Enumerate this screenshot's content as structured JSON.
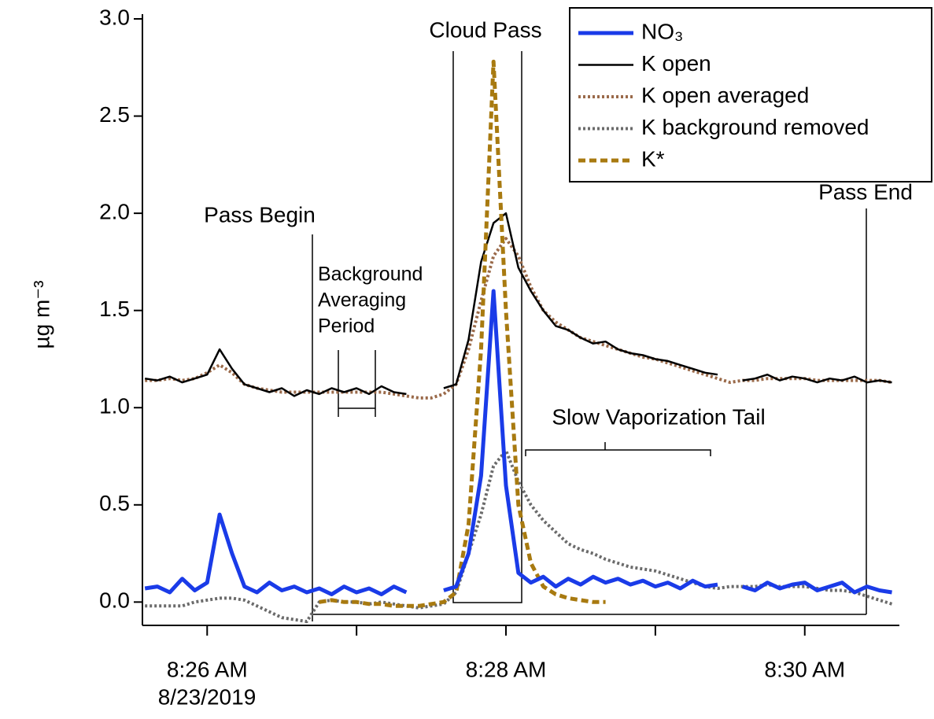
{
  "chart_data": {
    "type": "line",
    "ylabel": "µg m⁻³",
    "date_label": "8/23/2019",
    "xlim": [
      "08:25:34",
      "08:30:38"
    ],
    "ylim": [
      -0.12,
      3.0
    ],
    "xticks": [
      {
        "value": "08:26:00",
        "label": "8:26 AM"
      },
      {
        "value": "08:27:00",
        "label": null
      },
      {
        "value": "08:28:00",
        "label": "8:28 AM"
      },
      {
        "value": "08:29:00",
        "label": null
      },
      {
        "value": "08:30:00",
        "label": "8:30 AM"
      }
    ],
    "yticks": [
      {
        "value": 0,
        "label": "0.0"
      },
      {
        "value": 0.5,
        "label": "0.5"
      },
      {
        "value": 1,
        "label": "1.0"
      },
      {
        "value": 1.5,
        "label": "1.5"
      },
      {
        "value": 2,
        "label": "2.0"
      },
      {
        "value": 2.5,
        "label": "2.5"
      },
      {
        "value": 3,
        "label": "3.0"
      }
    ],
    "x": [
      "08:25:35",
      "08:25:40",
      "08:25:45",
      "08:25:50",
      "08:25:55",
      "08:26:00",
      "08:26:05",
      "08:26:10",
      "08:26:15",
      "08:26:20",
      "08:26:25",
      "08:26:30",
      "08:26:35",
      "08:26:40",
      "08:26:45",
      "08:26:50",
      "08:26:55",
      "08:27:00",
      "08:27:05",
      "08:27:10",
      "08:27:15",
      "08:27:20",
      "08:27:25",
      "08:27:30",
      "08:27:35",
      "08:27:40",
      "08:27:45",
      "08:27:50",
      "08:27:55",
      "08:28:00",
      "08:28:05",
      "08:28:10",
      "08:28:15",
      "08:28:20",
      "08:28:25",
      "08:28:30",
      "08:28:35",
      "08:28:40",
      "08:28:45",
      "08:28:50",
      "08:28:55",
      "08:29:00",
      "08:29:05",
      "08:29:10",
      "08:29:15",
      "08:29:20",
      "08:29:25",
      "08:29:30",
      "08:29:35",
      "08:29:40",
      "08:29:45",
      "08:29:50",
      "08:29:55",
      "08:30:00",
      "08:30:05",
      "08:30:10",
      "08:30:15",
      "08:30:20",
      "08:30:25",
      "08:30:30",
      "08:30:35"
    ],
    "series": [
      {
        "name": "NO₃",
        "color": "#1a3be8",
        "line_style": "solid",
        "line_width": 5,
        "values": [
          0.07,
          0.08,
          0.05,
          0.12,
          0.06,
          0.1,
          0.45,
          0.25,
          0.08,
          0.05,
          0.1,
          0.06,
          0.08,
          0.05,
          0.07,
          0.04,
          0.08,
          0.05,
          0.07,
          0.04,
          0.08,
          0.05,
          null,
          null,
          0.06,
          0.08,
          0.25,
          0.65,
          1.6,
          0.6,
          0.15,
          0.1,
          0.13,
          0.08,
          0.12,
          0.09,
          0.13,
          0.1,
          0.12,
          0.09,
          0.11,
          0.08,
          0.1,
          0.07,
          0.11,
          0.08,
          0.09,
          null,
          0.08,
          0.06,
          0.1,
          0.07,
          0.09,
          0.1,
          0.06,
          0.08,
          0.1,
          0.05,
          0.08,
          0.06,
          0.05
        ]
      },
      {
        "name": "K open",
        "color": "#000000",
        "line_style": "solid",
        "line_width": 2.5,
        "values": [
          1.15,
          1.14,
          1.16,
          1.13,
          1.15,
          1.17,
          1.3,
          1.2,
          1.12,
          1.1,
          1.08,
          1.1,
          1.06,
          1.09,
          1.07,
          1.1,
          1.08,
          1.1,
          1.07,
          1.11,
          1.08,
          1.07,
          null,
          null,
          1.1,
          1.12,
          1.35,
          1.75,
          1.95,
          2.0,
          1.72,
          1.6,
          1.5,
          1.42,
          1.4,
          1.36,
          1.33,
          1.34,
          1.3,
          1.28,
          1.27,
          1.25,
          1.24,
          1.22,
          1.2,
          1.18,
          1.17,
          null,
          1.14,
          1.15,
          1.17,
          1.14,
          1.16,
          1.15,
          1.13,
          1.15,
          1.14,
          1.16,
          1.13,
          1.14,
          1.13
        ]
      },
      {
        "name": "K open averaged",
        "color": "#9a6a4a",
        "line_style": "dotted",
        "line_width": 4,
        "values": [
          1.14,
          1.14,
          1.15,
          1.14,
          1.15,
          1.18,
          1.22,
          1.18,
          1.12,
          1.1,
          1.09,
          1.08,
          1.08,
          1.08,
          1.08,
          1.08,
          1.08,
          1.08,
          1.08,
          1.08,
          1.07,
          1.06,
          1.05,
          1.05,
          1.07,
          1.12,
          1.3,
          1.55,
          1.78,
          1.87,
          1.78,
          1.62,
          1.5,
          1.44,
          1.4,
          1.36,
          1.34,
          1.32,
          1.3,
          1.28,
          1.26,
          1.25,
          1.23,
          1.21,
          1.19,
          1.17,
          1.15,
          1.13,
          1.14,
          1.14,
          1.15,
          1.15,
          1.15,
          1.15,
          1.14,
          1.14,
          1.14,
          1.14,
          1.14,
          1.14,
          1.13
        ]
      },
      {
        "name": "K background removed",
        "color": "#6b6b6b",
        "line_style": "dotted",
        "line_width": 4,
        "values": [
          -0.02,
          -0.02,
          -0.02,
          -0.02,
          0.0,
          0.01,
          0.02,
          0.02,
          0.01,
          -0.02,
          -0.05,
          -0.08,
          -0.09,
          -0.1,
          0.0,
          0.01,
          0.0,
          0.0,
          -0.01,
          0.0,
          -0.01,
          -0.02,
          -0.03,
          -0.02,
          -0.01,
          0.05,
          0.25,
          0.45,
          0.7,
          0.78,
          0.62,
          0.5,
          0.42,
          0.36,
          0.3,
          0.27,
          0.25,
          0.22,
          0.2,
          0.18,
          0.17,
          0.16,
          0.14,
          0.12,
          0.1,
          0.08,
          0.07,
          0.08,
          0.08,
          0.08,
          0.09,
          0.08,
          0.08,
          0.08,
          0.07,
          0.06,
          0.06,
          0.05,
          0.03,
          0.01,
          -0.01
        ]
      },
      {
        "name": "K*",
        "color": "#a87a10",
        "line_style": "dashed",
        "line_width": 5,
        "values": [
          null,
          null,
          null,
          null,
          null,
          null,
          null,
          null,
          null,
          null,
          null,
          null,
          null,
          null,
          0.0,
          0.01,
          0.0,
          0.0,
          -0.01,
          -0.01,
          -0.02,
          -0.02,
          -0.02,
          -0.01,
          0.0,
          0.05,
          0.4,
          1.3,
          2.78,
          1.5,
          0.5,
          0.2,
          0.08,
          0.04,
          0.02,
          0.01,
          0.0,
          0.0,
          null,
          null,
          null,
          null,
          null,
          null,
          null,
          null,
          null,
          null,
          null,
          null,
          null,
          null,
          null,
          null,
          null,
          null,
          null,
          null,
          null,
          null,
          null
        ]
      }
    ],
    "annotations": {
      "pass_begin": "Pass Begin",
      "cloud_pass": "Cloud Pass",
      "pass_end": "Pass End",
      "background": [
        "Background",
        "Averaging",
        "Period"
      ],
      "tail": "Slow Vaporization Tail"
    }
  }
}
